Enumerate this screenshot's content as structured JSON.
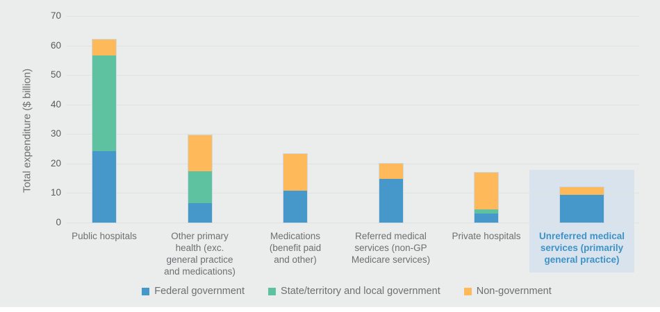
{
  "chart_data": {
    "type": "bar",
    "subtype": "stacked-vertical",
    "title": "",
    "xlabel": "",
    "ylabel": "Total expenditure ($ billion)",
    "ylim": [
      0,
      70
    ],
    "yticks": [
      0,
      10,
      20,
      30,
      40,
      50,
      60,
      70
    ],
    "grid": true,
    "legend_position": "bottom",
    "categories": [
      {
        "label": "Public hospitals",
        "lines": [
          "Public hospitals"
        ],
        "highlighted": false
      },
      {
        "label": "Other primary health (exc. general practice and medications)",
        "lines": [
          "Other primary",
          "health (exc.",
          "general practice",
          "and medications)"
        ],
        "highlighted": false
      },
      {
        "label": "Medications (benefit paid and other)",
        "lines": [
          "Medications",
          "(benefit paid",
          "and other)"
        ],
        "highlighted": false
      },
      {
        "label": "Referred medical services (non-GP Medicare services)",
        "lines": [
          "Referred medical",
          "services (non-GP",
          "Medicare services)"
        ],
        "highlighted": false
      },
      {
        "label": "Private hospitals",
        "lines": [
          "Private hospitals"
        ],
        "highlighted": false
      },
      {
        "label": "Unreferred medical services (primarily general practice)",
        "lines": [
          "Unreferred medical",
          "services (primarily",
          "general practice)"
        ],
        "highlighted": true
      }
    ],
    "series": [
      {
        "name": "Federal government",
        "color": "#4697ca",
        "values": [
          24.3,
          6.6,
          10.7,
          14.8,
          3.1,
          9.4
        ]
      },
      {
        "name": "State/territory and local government",
        "color": "#5ec2a1",
        "values": [
          32.4,
          10.7,
          0,
          0,
          1.3,
          0
        ]
      },
      {
        "name": "Non-government",
        "color": "#fdb95a",
        "values": [
          5.2,
          12.4,
          12.6,
          5.1,
          12.5,
          2.6
        ]
      }
    ],
    "totals": [
      61.9,
      29.7,
      23.3,
      19.9,
      16.9,
      12.0
    ]
  },
  "colors": {
    "background": "#ebedec",
    "gridline": "#e0e2e0",
    "tick_text": "#58595b",
    "label_text": "#6d6e71",
    "highlight_box": "#d9e3ee",
    "highlight_label": "#3e92c6"
  }
}
